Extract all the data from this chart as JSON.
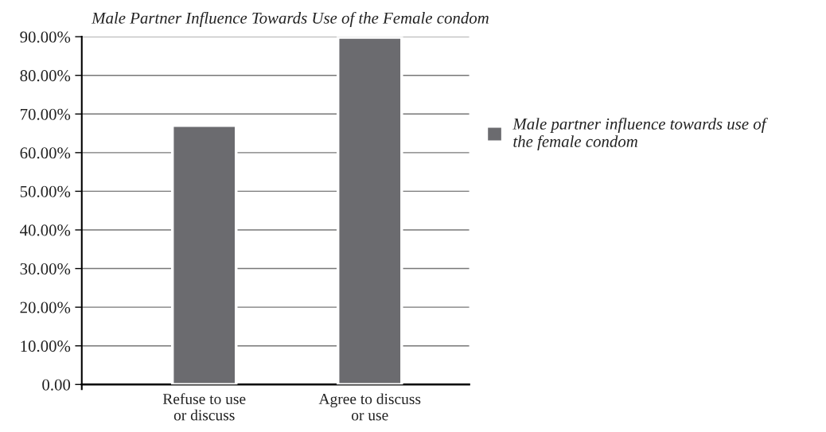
{
  "chart_data": {
    "type": "bar",
    "title": "Male Partner Influence Towards Use of the Female condom",
    "categories": [
      "Refuse to use\nor discuss",
      "Agree to discuss\nor use"
    ],
    "series": [
      {
        "name": "Male partner influence towards use of\nthe female condom",
        "color": "#6b6b6f",
        "values": [
          67,
          89.8
        ]
      }
    ],
    "ylim": [
      0,
      90
    ],
    "yticks": [
      {
        "value": 0,
        "label": "0.00"
      },
      {
        "value": 10,
        "label": "10.00%"
      },
      {
        "value": 20,
        "label": "20.00%"
      },
      {
        "value": 30,
        "label": "30.00%"
      },
      {
        "value": 40,
        "label": "40.00%"
      },
      {
        "value": 50,
        "label": "50.00%"
      },
      {
        "value": 60,
        "label": "60.00%"
      },
      {
        "value": 70,
        "label": "70.00%"
      },
      {
        "value": 80,
        "label": "80.00%"
      },
      {
        "value": 90,
        "label": "90.00%"
      }
    ],
    "grid": "y",
    "legend": "right"
  }
}
